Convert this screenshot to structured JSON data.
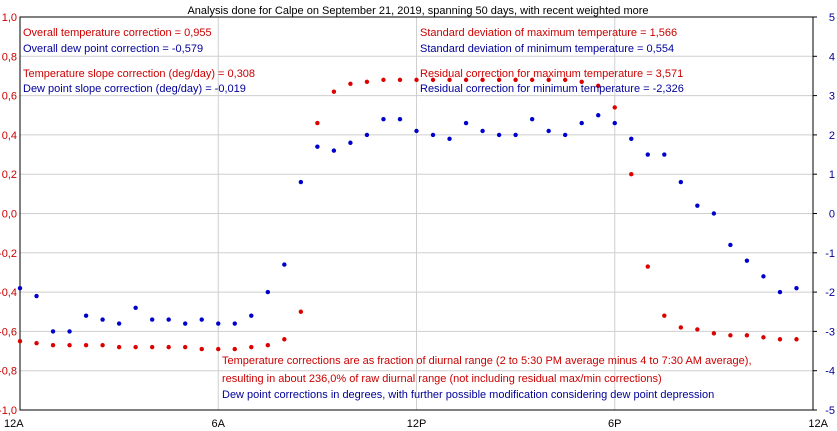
{
  "chart_data": {
    "type": "scatter",
    "title": "Analysis done for Calpe on September 21, 2019, spanning 50 days, with recent weighted more",
    "x_ticks": [
      {
        "x": 0,
        "label": "12A"
      },
      {
        "x": 6,
        "label": "6A"
      },
      {
        "x": 12,
        "label": "12P"
      },
      {
        "x": 18,
        "label": "6P"
      },
      {
        "x": 24,
        "label": "12A"
      }
    ],
    "xlim": [
      0,
      24
    ],
    "left_axis": {
      "ylim": [
        -1.0,
        1.0
      ],
      "ticks": [
        "-1,0",
        "-0,8",
        "-0,6",
        "-0,4",
        "-0,2",
        "0,0",
        "0,2",
        "0,4",
        "0,6",
        "0,8",
        "1,0"
      ],
      "color": "#cc0000"
    },
    "right_axis": {
      "ylim": [
        -5,
        5
      ],
      "ticks": [
        "-5",
        "-4",
        "-3",
        "-2",
        "-1",
        "0",
        "1",
        "2",
        "3",
        "4",
        "5"
      ],
      "color": "#000099"
    },
    "grid": true,
    "series": [
      {
        "axis": "left",
        "color": "#dd0000",
        "points": [
          [
            0.0,
            -0.65
          ],
          [
            0.5,
            -0.66
          ],
          [
            1.0,
            -0.67
          ],
          [
            1.5,
            -0.67
          ],
          [
            2.0,
            -0.67
          ],
          [
            2.5,
            -0.67
          ],
          [
            3.0,
            -0.68
          ],
          [
            3.5,
            -0.68
          ],
          [
            4.0,
            -0.68
          ],
          [
            4.5,
            -0.68
          ],
          [
            5.0,
            -0.68
          ],
          [
            5.5,
            -0.69
          ],
          [
            6.0,
            -0.69
          ],
          [
            6.5,
            -0.69
          ],
          [
            7.0,
            -0.68
          ],
          [
            7.5,
            -0.67
          ],
          [
            8.0,
            -0.64
          ],
          [
            8.5,
            -0.5
          ],
          [
            9.0,
            0.46
          ],
          [
            9.5,
            0.62
          ],
          [
            10.0,
            0.66
          ],
          [
            10.5,
            0.67
          ],
          [
            11.0,
            0.68
          ],
          [
            11.5,
            0.68
          ],
          [
            12.0,
            0.68
          ],
          [
            12.5,
            0.68
          ],
          [
            13.0,
            0.68
          ],
          [
            13.5,
            0.68
          ],
          [
            14.0,
            0.68
          ],
          [
            14.5,
            0.68
          ],
          [
            15.0,
            0.68
          ],
          [
            15.5,
            0.68
          ],
          [
            16.0,
            0.68
          ],
          [
            16.5,
            0.68
          ],
          [
            17.0,
            0.67
          ],
          [
            17.5,
            0.65
          ],
          [
            18.0,
            0.54
          ],
          [
            18.5,
            0.2
          ],
          [
            19.0,
            -0.27
          ],
          [
            19.5,
            -0.52
          ],
          [
            20.0,
            -0.58
          ],
          [
            20.5,
            -0.59
          ],
          [
            21.0,
            -0.61
          ],
          [
            21.5,
            -0.62
          ],
          [
            22.0,
            -0.62
          ],
          [
            22.5,
            -0.63
          ],
          [
            23.0,
            -0.64
          ],
          [
            23.5,
            -0.64
          ]
        ]
      },
      {
        "axis": "right",
        "color": "#0000cc",
        "points": [
          [
            0.0,
            -1.9
          ],
          [
            0.5,
            -2.1
          ],
          [
            1.0,
            -3.0
          ],
          [
            1.5,
            -3.0
          ],
          [
            2.0,
            -2.6
          ],
          [
            2.5,
            -2.7
          ],
          [
            3.0,
            -2.8
          ],
          [
            3.5,
            -2.4
          ],
          [
            4.0,
            -2.7
          ],
          [
            4.5,
            -2.7
          ],
          [
            5.0,
            -2.8
          ],
          [
            5.5,
            -2.7
          ],
          [
            6.0,
            -2.8
          ],
          [
            6.5,
            -2.8
          ],
          [
            7.0,
            -2.6
          ],
          [
            7.5,
            -2.0
          ],
          [
            8.0,
            -1.3
          ],
          [
            8.5,
            0.8
          ],
          [
            9.0,
            1.7
          ],
          [
            9.5,
            1.6
          ],
          [
            10.0,
            1.8
          ],
          [
            10.5,
            2.0
          ],
          [
            11.0,
            2.4
          ],
          [
            11.5,
            2.4
          ],
          [
            12.0,
            2.1
          ],
          [
            12.5,
            2.0
          ],
          [
            13.0,
            1.9
          ],
          [
            13.5,
            2.3
          ],
          [
            14.0,
            2.1
          ],
          [
            14.5,
            2.0
          ],
          [
            15.0,
            2.0
          ],
          [
            15.5,
            2.4
          ],
          [
            16.0,
            2.1
          ],
          [
            16.5,
            2.0
          ],
          [
            17.0,
            2.3
          ],
          [
            17.5,
            2.5
          ],
          [
            18.0,
            2.3
          ],
          [
            18.5,
            1.9
          ],
          [
            19.0,
            1.5
          ],
          [
            19.5,
            1.5
          ],
          [
            20.0,
            0.8
          ],
          [
            20.5,
            0.2
          ],
          [
            21.0,
            0.0
          ],
          [
            21.5,
            -0.8
          ],
          [
            22.0,
            -1.2
          ],
          [
            22.5,
            -1.6
          ],
          [
            23.0,
            -2.0
          ],
          [
            23.5,
            -1.9
          ]
        ]
      }
    ],
    "annotations": {
      "top_left": [
        {
          "text": "Overall temperature correction =  0,955",
          "color": "#cc0000"
        },
        {
          "text": "Overall dew point correction = -0,579",
          "color": "#000099"
        },
        {
          "text": "Temperature slope correction (deg/day) =  0,308",
          "color": "#cc0000"
        },
        {
          "text": "Dew point slope correction (deg/day) = -0,019",
          "color": "#000099"
        }
      ],
      "top_right": [
        {
          "text": "Standard deviation of maximum temperature =  1,566",
          "color": "#cc0000"
        },
        {
          "text": "Standard deviation of minimum temperature =  0,554",
          "color": "#000099"
        },
        {
          "text": "Residual correction for maximum temperature =  3,571",
          "color": "#cc0000"
        },
        {
          "text": "Residual correction for minimum temperature = -2,326",
          "color": "#000099"
        }
      ],
      "bottom": [
        {
          "text": "Temperature corrections are as fraction of diurnal range (2 to 5:30 PM average minus 4 to 7:30 AM average),",
          "color": "#cc0000"
        },
        {
          "text": "resulting in about 236,0% of raw diurnal range (not including residual max/min corrections)",
          "color": "#cc0000"
        },
        {
          "text": "Dew point corrections in degrees, with further possible modification considering dew point depression",
          "color": "#000099"
        }
      ]
    }
  }
}
